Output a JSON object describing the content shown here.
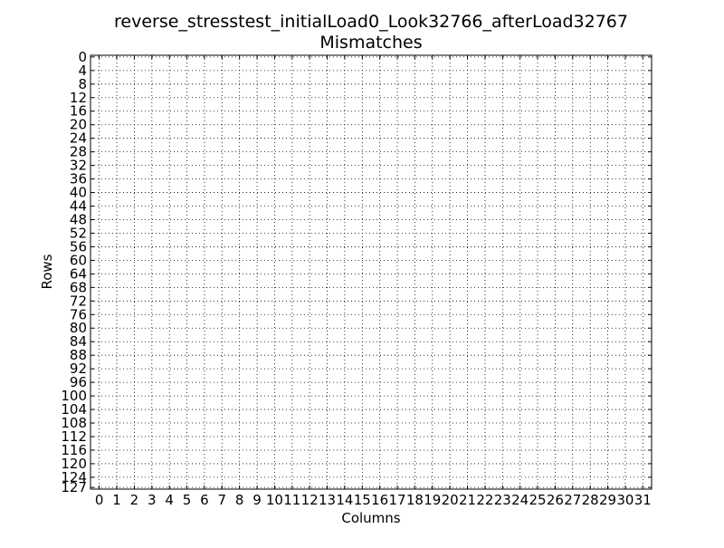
{
  "chart_data": {
    "type": "heatmap",
    "title_line1": "reverse_stresstest_initialLoad0_Look32766_afterLoad32767",
    "title_line2": "Mismatches",
    "xlabel": "Columns",
    "ylabel": "Rows",
    "x_ticks": [
      "0",
      "1",
      "2",
      "3",
      "4",
      "5",
      "6",
      "7",
      "8",
      "9",
      "10",
      "11",
      "12",
      "13",
      "14",
      "15",
      "16",
      "17",
      "18",
      "19",
      "20",
      "21",
      "22",
      "23",
      "24",
      "25",
      "26",
      "27",
      "28",
      "29",
      "30",
      "31"
    ],
    "y_ticks": [
      0,
      4,
      8,
      12,
      16,
      20,
      24,
      28,
      32,
      36,
      40,
      44,
      48,
      52,
      56,
      60,
      64,
      68,
      72,
      76,
      80,
      84,
      88,
      92,
      96,
      100,
      104,
      108,
      112,
      116,
      120,
      124,
      127
    ],
    "xlim": [
      -0.5,
      31.5
    ],
    "ylim": [
      127.5,
      -0.5
    ],
    "grid": true,
    "mismatches": []
  }
}
